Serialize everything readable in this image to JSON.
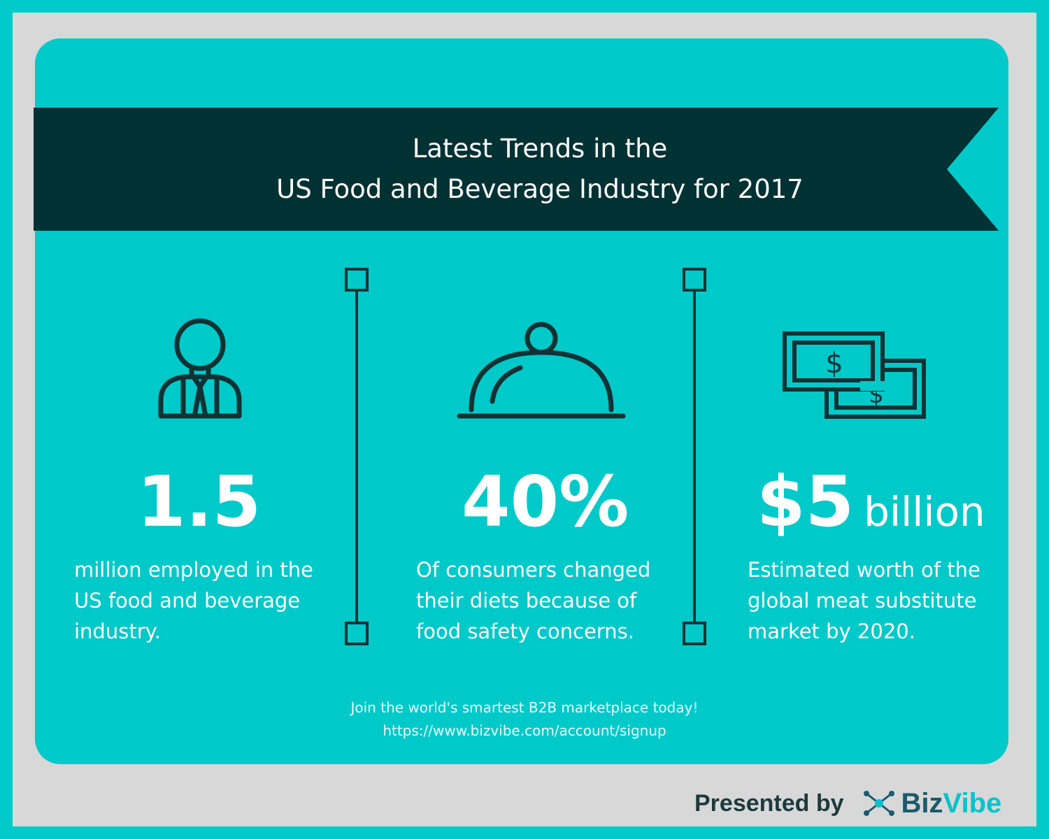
{
  "title": {
    "line1": "Latest Trends in the",
    "line2": "US Food and Beverage Industry for 2017"
  },
  "stats": [
    {
      "icon": "businessman-icon",
      "value": "1.5",
      "unit": "",
      "desc_lines": [
        "million employed in the",
        "US food and beverage",
        "industry."
      ]
    },
    {
      "icon": "food-cloche-icon",
      "value": "40%",
      "unit": "",
      "desc_lines": [
        "Of consumers changed",
        "their diets because of",
        "food safety concerns."
      ]
    },
    {
      "icon": "dollar-bills-icon",
      "value": "$5",
      "unit": "billion",
      "desc_lines": [
        "Estimated worth of the",
        "global meat substitute",
        "market by 2020."
      ]
    }
  ],
  "cta": {
    "line1": "Join the world's smartest B2B marketplace today!",
    "line2": "https://www.bizvibe.com/account/signup"
  },
  "footer": {
    "presented_by": "Presented by",
    "brand_part1": "Biz",
    "brand_part2": "Vibe"
  },
  "colors": {
    "background": "#00c9c9",
    "frame": "#d8d8d8",
    "banner": "#003133",
    "icon_stroke": "#0f3335",
    "text": "#ffffff",
    "brand_dark": "#1a5a6e",
    "brand_light": "#00c4cc"
  }
}
